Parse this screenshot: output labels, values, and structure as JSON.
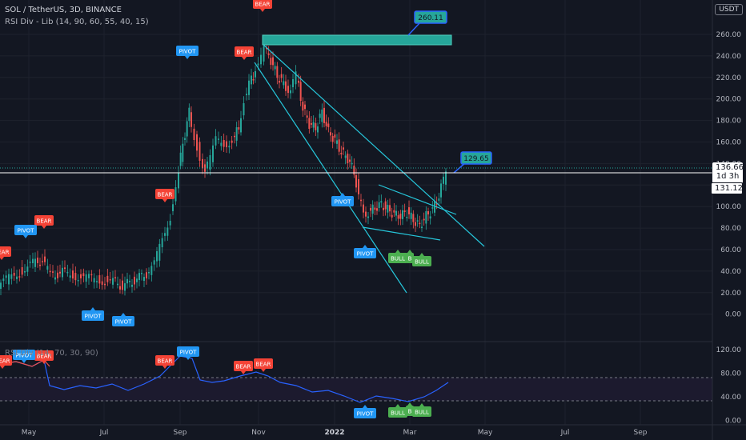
{
  "header": {
    "title": "SOL / TetherUS, 3D, BINANCE",
    "indicator": "RSI Div - Lib (14, 90, 60, 55, 40, 15)",
    "lower_indicator": "RSI Div (14, 70, 30, 90)",
    "currency_button": "USDT"
  },
  "price_axis": {
    "ticks": [
      "260.00",
      "240.00",
      "220.00",
      "200.00",
      "180.00",
      "160.00",
      "140.00",
      "120.00",
      "100.00",
      "80.00",
      "60.00",
      "40.00",
      "20.00",
      "0.00"
    ],
    "last_price": "136.66",
    "countdown": "1d 3h",
    "crosshair_price": "131.12"
  },
  "rsi_axis": {
    "ticks": [
      "120.00",
      "80.00",
      "40.00",
      "0.00"
    ]
  },
  "time_axis": {
    "labels": [
      "May",
      "Jul",
      "Sep",
      "Nov",
      "2022",
      "Mar",
      "May",
      "Jul",
      "Sep"
    ]
  },
  "annotations": {
    "target_high": "260.11",
    "target_current": "129.65"
  },
  "signals": {
    "bear": "BEAR",
    "pivot": "PIVOT",
    "bull": "BULL",
    "bull_short": "B"
  },
  "colors": {
    "background": "#131722",
    "bull_candle": "#26a69a",
    "bear_candle": "#ef5350",
    "pivot": "#2196f3",
    "bear_label": "#f44336",
    "bull_label": "#4caf50",
    "trendline": "#26c6da",
    "rsi_line": "#2962ff"
  }
}
